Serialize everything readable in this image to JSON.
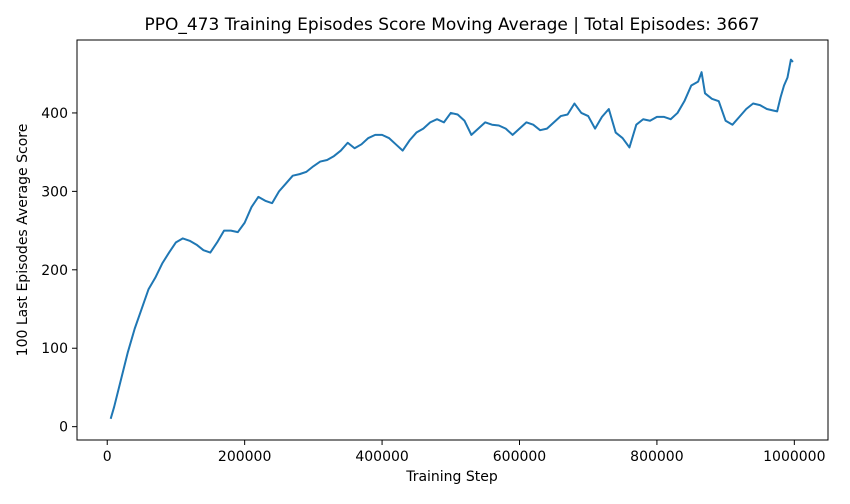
{
  "chart_data": {
    "type": "line",
    "title": "PPO_473 Training Episodes Score Moving Average | Total Episodes: 3667",
    "x_label": "Training Step",
    "y_label": "100 Last Episodes Average Score",
    "x": [
      5000,
      10000,
      20000,
      30000,
      40000,
      50000,
      60000,
      70000,
      80000,
      90000,
      100000,
      110000,
      120000,
      130000,
      140000,
      150000,
      160000,
      170000,
      180000,
      190000,
      200000,
      210000,
      220000,
      230000,
      240000,
      250000,
      260000,
      270000,
      280000,
      290000,
      300000,
      310000,
      320000,
      330000,
      340000,
      350000,
      360000,
      370000,
      380000,
      390000,
      400000,
      410000,
      420000,
      430000,
      440000,
      450000,
      460000,
      470000,
      480000,
      490000,
      500000,
      510000,
      520000,
      530000,
      540000,
      550000,
      560000,
      570000,
      580000,
      590000,
      600000,
      610000,
      620000,
      630000,
      640000,
      650000,
      660000,
      670000,
      680000,
      690000,
      700000,
      710000,
      720000,
      730000,
      740000,
      750000,
      760000,
      770000,
      780000,
      790000,
      800000,
      810000,
      820000,
      830000,
      840000,
      850000,
      860000,
      865000,
      870000,
      880000,
      890000,
      900000,
      910000,
      920000,
      930000,
      940000,
      950000,
      960000,
      970000,
      975000,
      980000,
      985000,
      990000,
      995000,
      998000
    ],
    "series": [
      {
        "name": "score",
        "color": "#1f77b4",
        "values": [
          10,
          25,
          60,
          95,
          125,
          150,
          175,
          190,
          208,
          222,
          235,
          240,
          237,
          232,
          225,
          222,
          235,
          250,
          250,
          248,
          260,
          280,
          293,
          288,
          285,
          300,
          310,
          320,
          322,
          325,
          332,
          338,
          340,
          345,
          352,
          362,
          355,
          360,
          368,
          372,
          372,
          368,
          360,
          352,
          365,
          375,
          380,
          388,
          392,
          388,
          400,
          398,
          390,
          372,
          380,
          388,
          385,
          384,
          380,
          372,
          380,
          388,
          385,
          378,
          380,
          388,
          396,
          398,
          412,
          400,
          396,
          380,
          395,
          405,
          375,
          368,
          356,
          385,
          392,
          390,
          395,
          395,
          392,
          400,
          415,
          435,
          440,
          452,
          425,
          418,
          415,
          390,
          385,
          395,
          405,
          412,
          410,
          405,
          403,
          402,
          420,
          435,
          445,
          468,
          465
        ]
      }
    ],
    "xlim": [
      -44000,
      1049000
    ],
    "ylim": [
      -17,
      493
    ],
    "xticks": [
      0,
      200000,
      400000,
      600000,
      800000,
      1000000
    ],
    "yticks": [
      0,
      100,
      200,
      300,
      400
    ],
    "grid": false
  }
}
